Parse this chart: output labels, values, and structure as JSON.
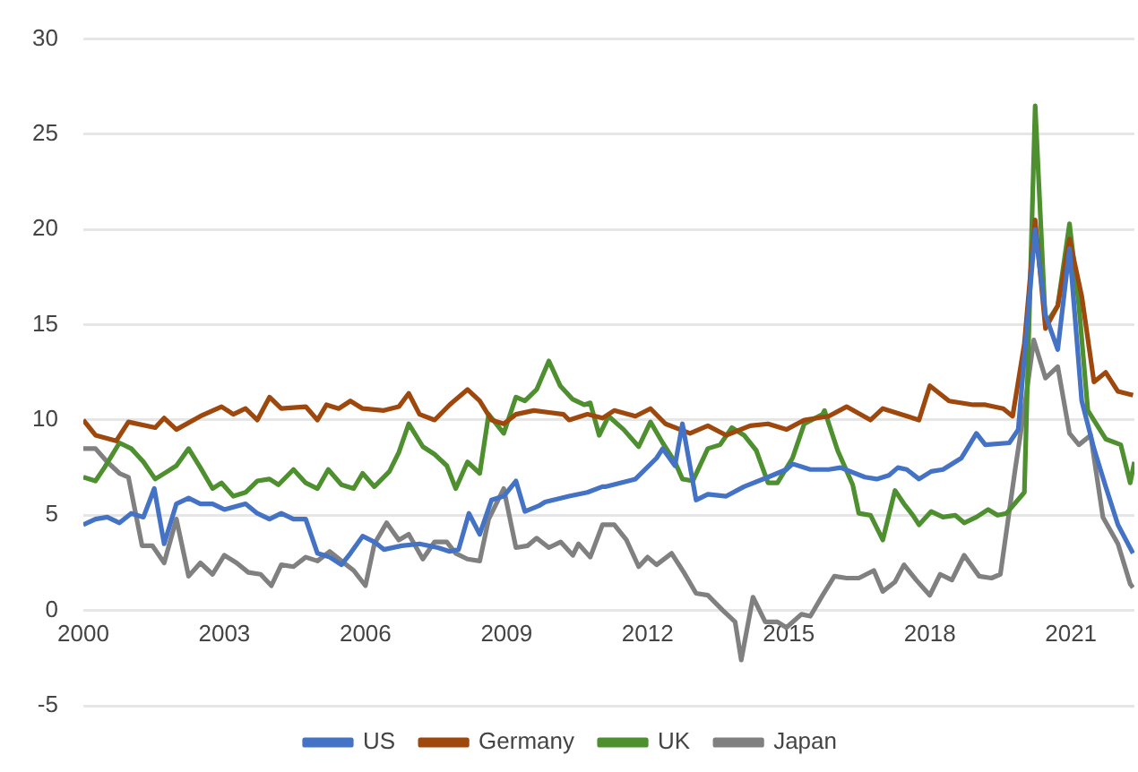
{
  "chart_data": {
    "type": "line",
    "xlim": [
      2000,
      2022.35
    ],
    "xticks": [
      2000,
      2003,
      2006,
      2009,
      2012,
      2015,
      2018,
      2021
    ],
    "ylim": [
      -5,
      30
    ],
    "yticks": [
      -5,
      0,
      5,
      10,
      15,
      20,
      25,
      30
    ],
    "grid": "y",
    "legend": "bottom",
    "marker": "none",
    "line_style": "solid",
    "series": [
      {
        "name": "US",
        "color": "#4472c4",
        "x": [
          2000,
          2000.26,
          2000.51,
          2000.77,
          2001.02,
          2001.28,
          2001.51,
          2001.72,
          2001.98,
          2002.24,
          2002.49,
          2002.75,
          2003,
          2003.45,
          2003.7,
          2003.96,
          2004.21,
          2004.47,
          2004.73,
          2004.98,
          2005.24,
          2005.49,
          2005.68,
          2005.94,
          2006.19,
          2006.39,
          2006.77,
          2007.15,
          2007.54,
          2007.79,
          2007.98,
          2008.2,
          2008.43,
          2008.68,
          2008.94,
          2009.2,
          2009.39,
          2009.69,
          2009.82,
          2010.33,
          2010.72,
          2011.04,
          2011.1,
          2011.74,
          2012.19,
          2012.32,
          2012.58,
          2012.74,
          2013.03,
          2013.28,
          2013.67,
          2014.05,
          2014.56,
          2014.95,
          2015.08,
          2015.46,
          2015.85,
          2016.1,
          2016.62,
          2016.87,
          2017.13,
          2017.32,
          2017.51,
          2017.77,
          2018.03,
          2018.28,
          2018.67,
          2018.99,
          2019.18,
          2019.69,
          2019.88,
          2020.24,
          2020.46,
          2020.72,
          2020.97,
          2021.23,
          2021.49,
          2021.74,
          2022,
          2022.32
        ],
        "values": [
          4.5,
          4.8,
          4.9,
          4.6,
          5.1,
          4.9,
          6.4,
          3.5,
          5.6,
          5.9,
          5.6,
          5.6,
          5.3,
          5.6,
          5.1,
          4.8,
          5.1,
          4.8,
          4.8,
          3,
          2.8,
          2.4,
          3,
          3.9,
          3.6,
          3.2,
          3.4,
          3.5,
          3.3,
          3.1,
          3.2,
          5.1,
          4,
          5.8,
          6,
          6.8,
          5.2,
          5.5,
          5.7,
          6,
          6.2,
          6.5,
          6.5,
          6.9,
          8,
          8.5,
          7.6,
          9.8,
          5.8,
          6.1,
          6,
          6.5,
          7,
          7.4,
          7.7,
          7.4,
          7.4,
          7.5,
          7,
          6.9,
          7.1,
          7.5,
          7.4,
          6.9,
          7.3,
          7.4,
          8,
          9.3,
          8.7,
          8.8,
          9.5,
          20,
          15.5,
          13.7,
          19,
          11,
          8.5,
          6.5,
          4.5,
          3
        ]
      },
      {
        "name": "Germany",
        "color": "#9e480e",
        "x": [
          2000,
          2000.26,
          2000.7,
          2000.96,
          2001.53,
          2001.72,
          2001.98,
          2002.49,
          2002.94,
          2003.19,
          2003.45,
          2003.7,
          2003.96,
          2004.21,
          2004.73,
          2004.98,
          2005.17,
          2005.43,
          2005.68,
          2005.94,
          2006.39,
          2006.71,
          2006.92,
          2007.15,
          2007.47,
          2007.79,
          2008.17,
          2008.43,
          2008.68,
          2008.94,
          2009.2,
          2009.58,
          2009.9,
          2010.21,
          2010.33,
          2010.72,
          2011.04,
          2011.29,
          2011.74,
          2012.06,
          2012.38,
          2012.9,
          2013.28,
          2013.67,
          2014.18,
          2014.56,
          2014.95,
          2015.33,
          2015.85,
          2016.23,
          2016.74,
          2017,
          2017.77,
          2018,
          2018.41,
          2018.92,
          2019.18,
          2019.56,
          2019.76,
          2020.01,
          2020.24,
          2020.46,
          2020.72,
          2020.97,
          2021.23,
          2021.49,
          2021.74,
          2022,
          2022.32
        ],
        "values": [
          10,
          9.2,
          8.9,
          9.9,
          9.6,
          10.1,
          9.5,
          10.2,
          10.7,
          10.3,
          10.6,
          10,
          11.2,
          10.6,
          10.7,
          10,
          10.8,
          10.6,
          11,
          10.6,
          10.5,
          10.7,
          11.4,
          10.3,
          10,
          10.8,
          11.6,
          11,
          10,
          9.8,
          10.3,
          10.5,
          10.4,
          10.3,
          10,
          10.3,
          10.1,
          10.5,
          10.2,
          10.6,
          9.8,
          9.3,
          9.7,
          9.2,
          9.7,
          9.8,
          9.5,
          10,
          10.2,
          10.7,
          10,
          10.6,
          10,
          11.8,
          11,
          10.8,
          10.8,
          10.6,
          10.2,
          14,
          20.5,
          14.8,
          16,
          19.5,
          16.5,
          12,
          12.5,
          11.5,
          11.3
        ]
      },
      {
        "name": "UK",
        "color": "#4e8f2f",
        "x": [
          2000,
          2000.26,
          2000.45,
          2000.77,
          2001.02,
          2001.28,
          2001.53,
          2001.79,
          2001.98,
          2002.24,
          2002.49,
          2002.75,
          2002.94,
          2003.19,
          2003.45,
          2003.7,
          2003.96,
          2004.15,
          2004.47,
          2004.73,
          2004.98,
          2005.21,
          2005.49,
          2005.75,
          2005.94,
          2006.19,
          2006.51,
          2006.71,
          2006.92,
          2007.22,
          2007.47,
          2007.73,
          2007.92,
          2008.17,
          2008.43,
          2008.62,
          2008.94,
          2009.2,
          2009.39,
          2009.64,
          2009.9,
          2010.14,
          2010.4,
          2010.65,
          2010.78,
          2010.97,
          2011.17,
          2011.49,
          2011.81,
          2012.06,
          2012.32,
          2012.58,
          2012.74,
          2012.96,
          2013.28,
          2013.54,
          2013.79,
          2014.05,
          2014.31,
          2014.56,
          2014.76,
          2015.08,
          2015.33,
          2015.72,
          2015.76,
          2016.04,
          2016.36,
          2016.49,
          2016.74,
          2017,
          2017.26,
          2017.45,
          2017.64,
          2017.77,
          2018.03,
          2018.28,
          2018.54,
          2018.73,
          2018.99,
          2019.24,
          2019.44,
          2019.63,
          2020.01,
          2020.24,
          2020.46,
          2020.72,
          2020.97,
          2021.17,
          2021.36,
          2021.74,
          2022.06,
          2022.26,
          2022.35
        ],
        "values": [
          7,
          6.8,
          7.5,
          8.8,
          8.5,
          7.8,
          6.9,
          7.3,
          7.6,
          8.5,
          7.5,
          6.4,
          6.7,
          6,
          6.2,
          6.8,
          6.9,
          6.6,
          7.4,
          6.7,
          6.4,
          7.4,
          6.6,
          6.4,
          7.2,
          6.5,
          7.3,
          8.3,
          9.8,
          8.6,
          8.2,
          7.6,
          6.4,
          7.8,
          7.2,
          10.3,
          9.3,
          11.2,
          11,
          11.6,
          13.1,
          11.8,
          11.1,
          10.8,
          10.9,
          9.2,
          10.2,
          9.5,
          8.6,
          9.9,
          8.8,
          7.8,
          6.9,
          6.8,
          8.5,
          8.7,
          9.6,
          9.2,
          8.4,
          6.7,
          6.7,
          8,
          9.8,
          10.3,
          10.5,
          8.4,
          6.6,
          5.1,
          5,
          3.7,
          6.3,
          5.6,
          5,
          4.5,
          5.2,
          4.9,
          5,
          4.6,
          4.9,
          5.3,
          5,
          5.1,
          6.2,
          26.5,
          15,
          16,
          20.3,
          16,
          10.5,
          9,
          8.7,
          6.7,
          7.8
        ]
      },
      {
        "name": "Japan",
        "color": "#808080",
        "x": [
          2000,
          2000.26,
          2000.51,
          2000.77,
          2000.96,
          2001.25,
          2001.47,
          2001.72,
          2001.98,
          2002.24,
          2002.49,
          2002.75,
          2003,
          2003.26,
          2003.51,
          2003.77,
          2004,
          2004.21,
          2004.47,
          2004.73,
          2004.98,
          2005.24,
          2005.49,
          2005.75,
          2006,
          2006.19,
          2006.45,
          2006.71,
          2006.92,
          2007.22,
          2007.47,
          2007.73,
          2007.92,
          2008.17,
          2008.43,
          2008.62,
          2008.94,
          2009.2,
          2009.45,
          2009.64,
          2009.9,
          2010.15,
          2010.41,
          2010.53,
          2010.78,
          2011.04,
          2011.29,
          2011.55,
          2011.81,
          2012,
          2012.19,
          2012.51,
          2012.77,
          2013.03,
          2013.28,
          2013.6,
          2013.86,
          2013.99,
          2014.24,
          2014.5,
          2014.76,
          2014.95,
          2015.27,
          2015.46,
          2015.72,
          2015.97,
          2016.23,
          2016.49,
          2016.81,
          2017,
          2017.26,
          2017.45,
          2017.71,
          2018,
          2018.22,
          2018.47,
          2018.73,
          2019.05,
          2019.31,
          2019.5,
          2019.82,
          2020.01,
          2020.21,
          2020.46,
          2020.72,
          2020.97,
          2021.17,
          2021.42,
          2021.68,
          2022,
          2022.26,
          2022.32
        ],
        "values": [
          8.5,
          8.5,
          7.8,
          7.2,
          7,
          3.4,
          3.4,
          2.5,
          4.8,
          1.8,
          2.5,
          1.9,
          2.9,
          2.5,
          2,
          1.9,
          1.3,
          2.4,
          2.3,
          2.8,
          2.6,
          3.1,
          2.6,
          2.1,
          1.3,
          3.5,
          4.6,
          3.7,
          4,
          2.7,
          3.6,
          3.6,
          3,
          2.7,
          2.6,
          4.8,
          6.4,
          3.3,
          3.4,
          3.8,
          3.3,
          3.6,
          2.9,
          3.5,
          2.8,
          4.5,
          4.5,
          3.7,
          2.3,
          2.8,
          2.4,
          3,
          2,
          0.9,
          0.8,
          0,
          -0.6,
          -2.6,
          0.7,
          -0.6,
          -0.6,
          -0.9,
          -0.2,
          -0.3,
          0.8,
          1.8,
          1.7,
          1.7,
          2.1,
          1,
          1.5,
          2.4,
          1.6,
          0.8,
          1.9,
          1.6,
          2.9,
          1.8,
          1.7,
          1.9,
          7.5,
          10.6,
          14.2,
          12.2,
          12.8,
          9.3,
          8.7,
          9.2,
          4.9,
          3.5,
          1.4,
          1.2
        ]
      }
    ]
  }
}
